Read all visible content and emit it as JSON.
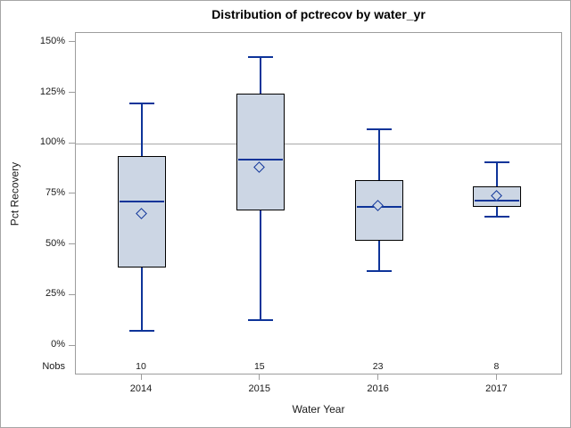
{
  "chart_data": {
    "type": "boxplot",
    "title": "Distribution of pctrecov by water_yr",
    "xlabel": "Water Year",
    "ylabel": "Pct Recovery",
    "nobs_label": "Nobs",
    "ref_line": 100,
    "ylim": [
      0,
      155
    ],
    "grid": "off",
    "legend": "none",
    "yticks": [
      {
        "label": "0%",
        "value": 0
      },
      {
        "label": "25%",
        "value": 25
      },
      {
        "label": "50%",
        "value": 50
      },
      {
        "label": "75%",
        "value": 75
      },
      {
        "label": "100%",
        "value": 100
      },
      {
        "label": "125%",
        "value": 125
      },
      {
        "label": "150%",
        "value": 150
      }
    ],
    "categories": [
      "2014",
      "2015",
      "2016",
      "2017"
    ],
    "nobs": [
      10,
      15,
      23,
      8
    ],
    "series": [
      {
        "category": "2014",
        "nobs": 10,
        "whisker_low": 7.5,
        "q1": 39,
        "median": 71.5,
        "mean": 65,
        "q3": 94,
        "whisker_high": 120
      },
      {
        "category": "2015",
        "nobs": 15,
        "whisker_low": 13,
        "q1": 67,
        "median": 92,
        "mean": 88,
        "q3": 125,
        "whisker_high": 143
      },
      {
        "category": "2016",
        "nobs": 23,
        "whisker_low": 37,
        "q1": 52,
        "median": 69,
        "mean": 69,
        "q3": 82,
        "whisker_high": 107
      },
      {
        "category": "2017",
        "nobs": 8,
        "whisker_low": 64,
        "q1": 69,
        "median": 72,
        "mean": 74,
        "q3": 79,
        "whisker_high": 91
      }
    ]
  },
  "colors": {
    "box_fill": "#ccd6e4",
    "box_border": "#000000",
    "line_blue": "#0e3499",
    "reference_line": "#a8a8a8",
    "axis_line": "#9d9d9d",
    "text": "#1a1a1a"
  }
}
